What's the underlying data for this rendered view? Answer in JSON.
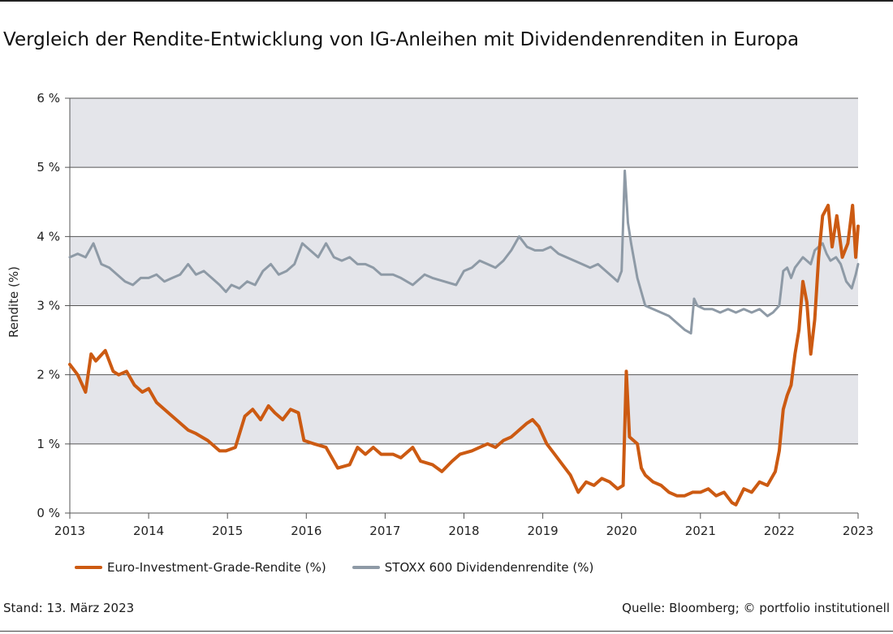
{
  "page": {
    "title": "Vergleich der Rendite-Entwicklung von IG-Anleihen mit Dividendenrenditen in Europa",
    "stand": "Stand: 13. März 2023",
    "source": "Quelle: Bloomberg; © portfolio institutionell"
  },
  "colors": {
    "ig": "#cc5a12",
    "stoxx": "#8e9aa6",
    "band": "#e4e5ea",
    "grid": "#555555"
  },
  "chart_data": {
    "type": "line",
    "title": "Vergleich der Rendite-Entwicklung von IG-Anleihen mit Dividendenrenditen in Europa",
    "xlabel": "",
    "ylabel": "Rendite (%)",
    "xlim": [
      2013,
      2023
    ],
    "ylim": [
      0,
      6
    ],
    "x_ticks": [
      "2013",
      "2014",
      "2015",
      "2016",
      "2017",
      "2018",
      "2019",
      "2020",
      "2021",
      "2022",
      "2023"
    ],
    "y_ticks": [
      "0 %",
      "1 %",
      "2 %",
      "3 %",
      "4 %",
      "5 %",
      "6 %"
    ],
    "grid": true,
    "shaded_bands": [
      [
        1,
        2
      ],
      [
        3,
        4
      ],
      [
        5,
        6
      ]
    ],
    "legend_position": "bottom-left",
    "series": [
      {
        "name": "Euro-Investment-Grade-Rendite (%)",
        "x": [
          2013.0,
          2013.1,
          2013.2,
          2013.27,
          2013.33,
          2013.45,
          2013.55,
          2013.62,
          2013.72,
          2013.82,
          2013.92,
          2014.0,
          2014.1,
          2014.2,
          2014.35,
          2014.5,
          2014.6,
          2014.75,
          2014.9,
          2014.98,
          2015.1,
          2015.22,
          2015.32,
          2015.42,
          2015.52,
          2015.6,
          2015.7,
          2015.8,
          2015.9,
          2015.97,
          2016.1,
          2016.25,
          2016.4,
          2016.55,
          2016.65,
          2016.75,
          2016.85,
          2016.95,
          2017.1,
          2017.2,
          2017.35,
          2017.45,
          2017.6,
          2017.72,
          2017.85,
          2017.95,
          2018.1,
          2018.2,
          2018.3,
          2018.4,
          2018.5,
          2018.6,
          2018.7,
          2018.8,
          2018.87,
          2018.95,
          2019.05,
          2019.15,
          2019.25,
          2019.35,
          2019.45,
          2019.55,
          2019.65,
          2019.75,
          2019.85,
          2019.95,
          2020.02,
          2020.06,
          2020.1,
          2020.2,
          2020.25,
          2020.3,
          2020.4,
          2020.5,
          2020.6,
          2020.7,
          2020.8,
          2020.9,
          2021.0,
          2021.1,
          2021.2,
          2021.3,
          2021.4,
          2021.45,
          2021.55,
          2021.65,
          2021.75,
          2021.85,
          2021.95,
          2022.0,
          2022.05,
          2022.1,
          2022.15,
          2022.2,
          2022.25,
          2022.3,
          2022.35,
          2022.4,
          2022.45,
          2022.5,
          2022.55,
          2022.62,
          2022.67,
          2022.73,
          2022.8,
          2022.87,
          2022.93,
          2022.97,
          2023.0
        ],
        "values": [
          2.15,
          2.0,
          1.75,
          2.3,
          2.2,
          2.35,
          2.05,
          2.0,
          2.05,
          1.85,
          1.75,
          1.8,
          1.6,
          1.5,
          1.35,
          1.2,
          1.15,
          1.05,
          0.9,
          0.9,
          0.95,
          1.4,
          1.5,
          1.35,
          1.55,
          1.45,
          1.35,
          1.5,
          1.45,
          1.05,
          1.0,
          0.95,
          0.65,
          0.7,
          0.95,
          0.85,
          0.95,
          0.85,
          0.85,
          0.8,
          0.95,
          0.75,
          0.7,
          0.6,
          0.75,
          0.85,
          0.9,
          0.95,
          1.0,
          0.95,
          1.05,
          1.1,
          1.2,
          1.3,
          1.35,
          1.25,
          1.0,
          0.85,
          0.7,
          0.55,
          0.3,
          0.45,
          0.4,
          0.5,
          0.45,
          0.35,
          0.4,
          2.05,
          1.1,
          1.0,
          0.65,
          0.55,
          0.45,
          0.4,
          0.3,
          0.25,
          0.25,
          0.3,
          0.3,
          0.35,
          0.25,
          0.3,
          0.15,
          0.12,
          0.35,
          0.3,
          0.45,
          0.4,
          0.6,
          0.9,
          1.5,
          1.7,
          1.85,
          2.3,
          2.65,
          3.35,
          3.05,
          2.3,
          2.8,
          3.7,
          4.3,
          4.45,
          3.85,
          4.3,
          3.7,
          3.9,
          4.45,
          3.7,
          4.15
        ]
      },
      {
        "name": "STOXX 600 Dividendenrendite (%)",
        "x": [
          2013.0,
          2013.1,
          2013.2,
          2013.3,
          2013.4,
          2013.5,
          2013.6,
          2013.7,
          2013.8,
          2013.9,
          2014.0,
          2014.1,
          2014.2,
          2014.3,
          2014.4,
          2014.5,
          2014.6,
          2014.7,
          2014.8,
          2014.9,
          2014.98,
          2015.05,
          2015.15,
          2015.25,
          2015.35,
          2015.45,
          2015.55,
          2015.65,
          2015.75,
          2015.85,
          2015.95,
          2016.05,
          2016.15,
          2016.25,
          2016.35,
          2016.45,
          2016.55,
          2016.65,
          2016.75,
          2016.85,
          2016.95,
          2017.1,
          2017.2,
          2017.35,
          2017.5,
          2017.6,
          2017.75,
          2017.9,
          2018.0,
          2018.1,
          2018.2,
          2018.3,
          2018.4,
          2018.5,
          2018.6,
          2018.7,
          2018.8,
          2018.9,
          2019.0,
          2019.1,
          2019.2,
          2019.3,
          2019.4,
          2019.5,
          2019.6,
          2019.7,
          2019.8,
          2019.9,
          2019.95,
          2020.0,
          2020.04,
          2020.08,
          2020.12,
          2020.2,
          2020.3,
          2020.4,
          2020.5,
          2020.6,
          2020.7,
          2020.8,
          2020.88,
          2020.92,
          2020.96,
          2021.05,
          2021.15,
          2021.25,
          2021.35,
          2021.45,
          2021.55,
          2021.65,
          2021.75,
          2021.85,
          2021.92,
          2022.0,
          2022.05,
          2022.1,
          2022.15,
          2022.2,
          2022.3,
          2022.4,
          2022.45,
          2022.55,
          2022.6,
          2022.65,
          2022.72,
          2022.78,
          2022.85,
          2022.92,
          2022.97,
          2023.0
        ],
        "values": [
          3.7,
          3.75,
          3.7,
          3.9,
          3.6,
          3.55,
          3.45,
          3.35,
          3.3,
          3.4,
          3.4,
          3.45,
          3.35,
          3.4,
          3.45,
          3.6,
          3.45,
          3.5,
          3.4,
          3.3,
          3.2,
          3.3,
          3.25,
          3.35,
          3.3,
          3.5,
          3.6,
          3.45,
          3.5,
          3.6,
          3.9,
          3.8,
          3.7,
          3.9,
          3.7,
          3.65,
          3.7,
          3.6,
          3.6,
          3.55,
          3.45,
          3.45,
          3.4,
          3.3,
          3.45,
          3.4,
          3.35,
          3.3,
          3.5,
          3.55,
          3.65,
          3.6,
          3.55,
          3.65,
          3.8,
          4.0,
          3.85,
          3.8,
          3.8,
          3.85,
          3.75,
          3.7,
          3.65,
          3.6,
          3.55,
          3.6,
          3.5,
          3.4,
          3.35,
          3.5,
          4.95,
          4.2,
          3.9,
          3.4,
          3.0,
          2.95,
          2.9,
          2.85,
          2.75,
          2.65,
          2.6,
          3.1,
          3.0,
          2.95,
          2.95,
          2.9,
          2.95,
          2.9,
          2.95,
          2.9,
          2.95,
          2.85,
          2.9,
          3.0,
          3.5,
          3.55,
          3.4,
          3.55,
          3.7,
          3.6,
          3.8,
          3.9,
          3.75,
          3.65,
          3.7,
          3.6,
          3.35,
          3.25,
          3.45,
          3.6
        ]
      }
    ]
  }
}
